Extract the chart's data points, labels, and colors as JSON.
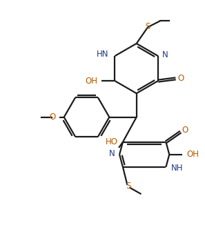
{
  "line_color": "#1a1a1a",
  "heteroatom_color": "#1e3a8a",
  "oxygen_color": "#b35900",
  "background": "#ffffff",
  "line_width": 1.6,
  "figsize": [
    2.97,
    3.36
  ],
  "dpi": 100,
  "xlim": [
    0,
    9
  ],
  "ylim": [
    0,
    10.2
  ]
}
